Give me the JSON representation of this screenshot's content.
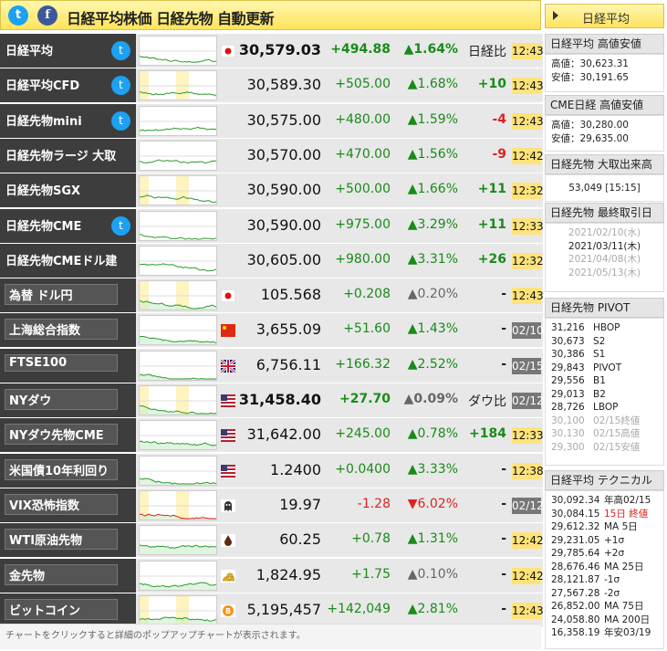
{
  "header": {
    "twitter_glyph": "t",
    "facebook_glyph": "f",
    "title": "日経平均株価 日経先物 自動更新",
    "sidebar_button": "日経平均"
  },
  "rows": [
    {
      "name": "日経平均",
      "twitter": true,
      "flag": "jp",
      "price": "30,579.03",
      "price_bold": true,
      "change": "+494.88",
      "change_bold": true,
      "pct": "▲1.64%",
      "pct_bold": true,
      "diff": "日経比",
      "diff_kind": "label",
      "time": "12:43",
      "time_dark": false
    },
    {
      "name": "日経平均CFD",
      "twitter": true,
      "flag": "",
      "price": "30,589.30",
      "change": "+505.00",
      "pct": "▲1.68%",
      "diff": "+10",
      "diff_kind": "g",
      "time": "12:43"
    },
    {
      "name": "日経先物mini",
      "twitter": true,
      "flag": "",
      "price": "30,575.00",
      "change": "+480.00",
      "pct": "▲1.59%",
      "diff": "-4",
      "diff_kind": "r",
      "time": "12:43"
    },
    {
      "name": "日経先物ラージ 大取",
      "twitter": false,
      "flag": "",
      "price": "30,570.00",
      "change": "+470.00",
      "pct": "▲1.56%",
      "diff": "-9",
      "diff_kind": "r",
      "time": "12:42"
    },
    {
      "name": "日経先物SGX",
      "twitter": false,
      "flag": "",
      "price": "30,590.00",
      "change": "+500.00",
      "pct": "▲1.66%",
      "diff": "+11",
      "diff_kind": "g",
      "time": "12:32"
    },
    {
      "name": "日経先物CME",
      "twitter": true,
      "flag": "",
      "price": "30,590.00",
      "change": "+975.00",
      "pct": "▲3.29%",
      "diff": "+11",
      "diff_kind": "g",
      "time": "12:33"
    },
    {
      "name": "日経先物CMEドル建",
      "twitter": false,
      "flag": "",
      "price": "30,605.00",
      "change": "+980.00",
      "pct": "▲3.31%",
      "diff": "+26",
      "diff_kind": "g",
      "time": "12:32"
    },
    {
      "name": "為替 ドル円",
      "twitter": false,
      "boxed": true,
      "flag": "jp",
      "price": "105.568",
      "change": "+0.208",
      "pct": "▲0.20%",
      "pct_kind": "gray",
      "diff": "-",
      "diff_kind": "n",
      "time": "12:43"
    },
    {
      "name": "上海総合指数",
      "twitter": false,
      "boxed": true,
      "flag": "cn",
      "price": "3,655.09",
      "change": "+51.60",
      "pct": "▲1.43%",
      "diff": "-",
      "diff_kind": "n",
      "time": "02/10",
      "time_dark": true
    },
    {
      "name": "FTSE100",
      "twitter": false,
      "boxed": true,
      "flag": "uk",
      "price": "6,756.11",
      "change": "+166.32",
      "pct": "▲2.52%",
      "diff": "-",
      "diff_kind": "n",
      "time": "02/15",
      "time_dark": true
    },
    {
      "name": "NYダウ",
      "twitter": false,
      "boxed": true,
      "flag": "us",
      "price": "31,458.40",
      "price_bold": true,
      "change": "+27.70",
      "change_bold": true,
      "pct": "▲0.09%",
      "pct_kind": "gray",
      "pct_bold": true,
      "diff": "ダウ比",
      "diff_kind": "label",
      "time": "02/12",
      "time_dark": true
    },
    {
      "name": "NYダウ先物CME",
      "twitter": false,
      "boxed": true,
      "flag": "us",
      "price": "31,642.00",
      "change": "+245.00",
      "pct": "▲0.78%",
      "diff": "+184",
      "diff_kind": "g",
      "time": "12:33"
    },
    {
      "name": "米国債10年利回り",
      "twitter": false,
      "boxed": true,
      "flag": "us",
      "price": "1.2400",
      "change": "+0.0400",
      "pct": "▲3.33%",
      "diff": "-",
      "diff_kind": "n",
      "time": "12:38"
    },
    {
      "name": "VIX恐怖指数",
      "twitter": false,
      "boxed": true,
      "flag": "ghost",
      "price": "19.97",
      "change": "-1.28",
      "change_kind": "red",
      "pct": "▼6.02%",
      "pct_kind": "red",
      "diff": "-",
      "diff_kind": "n",
      "time": "02/12",
      "time_dark": true
    },
    {
      "name": "WTI原油先物",
      "twitter": false,
      "boxed": true,
      "flag": "oil",
      "price": "60.25",
      "change": "+0.78",
      "pct": "▲1.31%",
      "diff": "-",
      "diff_kind": "n",
      "time": "12:42"
    },
    {
      "name": "金先物",
      "twitter": false,
      "boxed": true,
      "flag": "gold",
      "price": "1,824.95",
      "change": "+1.75",
      "pct": "▲0.10%",
      "pct_kind": "gray",
      "diff": "-",
      "diff_kind": "n",
      "time": "12:42"
    },
    {
      "name": "ビットコイン",
      "twitter": false,
      "boxed": true,
      "flag": "btc",
      "price": "5,195,457",
      "change": "+142,049",
      "pct": "▲2.81%",
      "diff": "-",
      "diff_kind": "n",
      "time": "12:43"
    }
  ],
  "sidebar": {
    "nikkei_hilo": {
      "title": "日経平均 高値安値",
      "high": "高値：30,623.31",
      "low": "安値：30,191.65"
    },
    "cme_hilo": {
      "title": "CME日経 高値安値",
      "high": "高値：30,280.00",
      "low": "安値：29,635.00"
    },
    "volume": {
      "title": "日経先物 大取出来高",
      "value": "53,049 [15:15]"
    },
    "last_trade": {
      "title": "日経先物 最終取引日",
      "dates": [
        {
          "text": "2021/02/10(水)",
          "muted": true
        },
        {
          "text": "2021/03/11(木)",
          "muted": false
        },
        {
          "text": "2021/04/08(木)",
          "muted": true
        },
        {
          "text": "2021/05/13(木)",
          "muted": true
        }
      ]
    },
    "pivot": {
      "title": "日経先物 PIVOT",
      "lines": [
        {
          "v": "31,216",
          "k": "HBOP"
        },
        {
          "v": "30,673",
          "k": "S2"
        },
        {
          "v": "30,386",
          "k": "S1"
        },
        {
          "v": "29,843",
          "k": "PIVOT"
        },
        {
          "v": "29,556",
          "k": "B1"
        },
        {
          "v": "29,013",
          "k": "B2"
        },
        {
          "v": "28,726",
          "k": "LBOP"
        }
      ],
      "muted": [
        {
          "v": "30,100",
          "k": "02/15終値"
        },
        {
          "v": "30,130",
          "k": "02/15高値"
        },
        {
          "v": "29,300",
          "k": "02/15安値"
        }
      ]
    },
    "technical": {
      "title": "日経平均 テクニカル",
      "lines": [
        {
          "v": "30,092.34",
          "k": "年高02/15",
          "red": false
        },
        {
          "v": "30,084.15",
          "k": "15日 終値",
          "red": true
        },
        {
          "v": "29,612.32",
          "k": "MA 5日",
          "red": false
        },
        {
          "v": "29,231.05",
          "k": "+1σ",
          "red": false
        },
        {
          "v": "29,785.64",
          "k": "+2σ",
          "red": false
        },
        {
          "v": "28,676.46",
          "k": "MA 25日",
          "red": false
        },
        {
          "v": "28,121.87",
          "k": "-1σ",
          "red": false
        },
        {
          "v": "27,567.28",
          "k": "-2σ",
          "red": false
        },
        {
          "v": "26,852.00",
          "k": "MA 75日",
          "red": false
        },
        {
          "v": "24,058.80",
          "k": "MA 200日",
          "red": false
        },
        {
          "v": "16,358.19",
          "k": "年安03/19",
          "red": false
        }
      ]
    }
  },
  "footer": "チャートをクリックすると詳細のポップアップチャートが表示されます。",
  "colors": {
    "up": "#1a8a1a",
    "down": "#dd2222",
    "header": "#ffe45a",
    "name_bg": "#3d3d3d",
    "time_bg": "#ffe37a"
  }
}
